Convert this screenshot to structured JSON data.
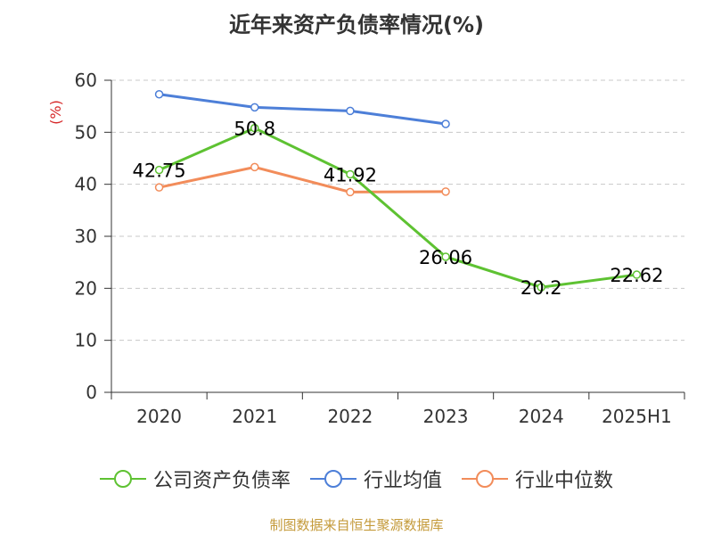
{
  "title": "近年来资产负债率情况(%)",
  "source": "制图数据来自恒生聚源数据库",
  "chart_data": {
    "type": "line",
    "title": "近年来资产负债率情况(%)",
    "ylabel": "(%)",
    "xlabel": "",
    "categories": [
      "2020",
      "2021",
      "2022",
      "2023",
      "2024",
      "2025H1"
    ],
    "yticks": [
      "0",
      "10",
      "20",
      "30",
      "40",
      "50",
      "60"
    ],
    "ylim": [
      0,
      60
    ],
    "grid": true,
    "legend_position": "bottom",
    "series": [
      {
        "name": "公司资产负债率",
        "color": "#5ec232",
        "values": [
          42.75,
          50.8,
          41.92,
          26.06,
          20.2,
          22.62
        ],
        "labels": [
          "42.75",
          "50.8",
          "41.92",
          "26.06",
          "20.2",
          "22.62"
        ]
      },
      {
        "name": "行业均值",
        "color": "#4d7fd8",
        "values": [
          57.3,
          54.8,
          54.1,
          51.6,
          null,
          null
        ]
      },
      {
        "name": "行业中位数",
        "color": "#f28c5a",
        "values": [
          39.4,
          43.3,
          38.5,
          38.6,
          null,
          null
        ]
      }
    ]
  }
}
